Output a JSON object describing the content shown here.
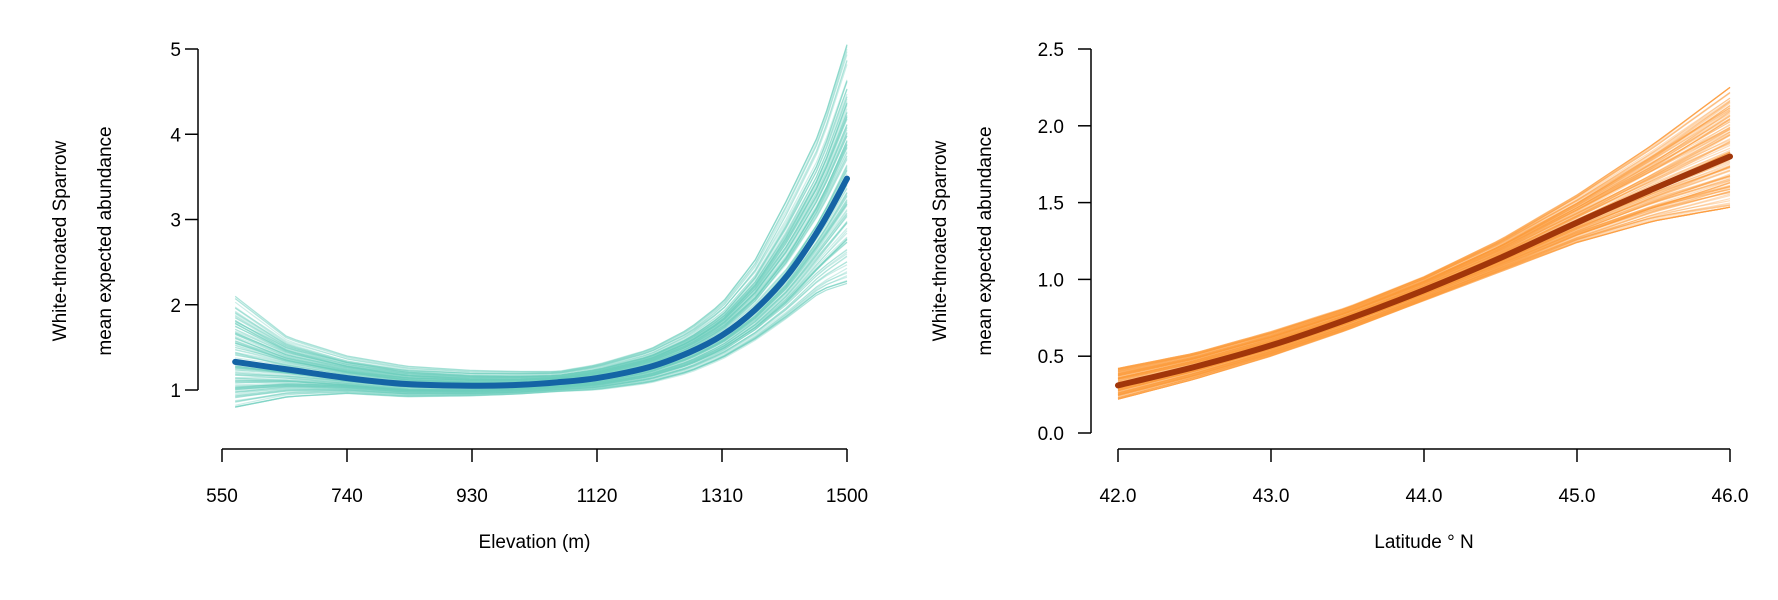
{
  "chart_data": [
    {
      "type": "line",
      "title": "",
      "xlabel": "Elevation (m)",
      "ylabel_lines": [
        "White-throated Sparrow",
        "mean expected abundance"
      ],
      "xlim": [
        550,
        1500
      ],
      "ylim": [
        0.3,
        5
      ],
      "xticks": [
        550,
        740,
        930,
        1120,
        1310,
        1500
      ],
      "xtick_labels": [
        "550",
        "740",
        "930",
        "1120",
        "1310",
        "1500"
      ],
      "yticks": [
        1,
        2,
        3,
        4,
        5
      ],
      "ytick_labels": [
        "1",
        "2",
        "3",
        "4",
        "5"
      ],
      "grid": false,
      "legend": "none",
      "band_color": "#6ccfbd",
      "mean_color": "#1464a5",
      "mean_series": {
        "x": [
          570,
          650,
          740,
          830,
          930,
          1000,
          1060,
          1120,
          1200,
          1260,
          1310,
          1360,
          1410,
          1460,
          1500
        ],
        "y": [
          1.33,
          1.24,
          1.14,
          1.07,
          1.05,
          1.06,
          1.09,
          1.14,
          1.27,
          1.44,
          1.64,
          1.94,
          2.35,
          2.92,
          3.48
        ]
      },
      "posterior_band": {
        "x": [
          570,
          650,
          740,
          830,
          930,
          1000,
          1060,
          1120,
          1200,
          1260,
          1310,
          1360,
          1410,
          1460,
          1500
        ],
        "lower": [
          0.8,
          0.92,
          0.96,
          0.92,
          0.93,
          0.95,
          0.98,
          1.0,
          1.08,
          1.2,
          1.36,
          1.58,
          1.85,
          2.15,
          2.25
        ],
        "upper": [
          2.1,
          1.62,
          1.4,
          1.28,
          1.23,
          1.22,
          1.22,
          1.3,
          1.48,
          1.72,
          2.02,
          2.52,
          3.25,
          4.05,
          5.05
        ]
      }
    },
    {
      "type": "line",
      "title": "",
      "xlabel": "Latitude ° N",
      "ylabel_lines": [
        "White-throated Sparrow",
        "mean expected abundance"
      ],
      "xlim": [
        42.0,
        46.0
      ],
      "ylim": [
        0.0,
        2.5
      ],
      "xticks": [
        42,
        43,
        44,
        45,
        46
      ],
      "xtick_labels": [
        "42.0",
        "43.0",
        "44.0",
        "45.0",
        "46.0"
      ],
      "yticks": [
        0,
        0.5,
        1,
        1.5,
        2,
        2.5
      ],
      "ytick_labels": [
        "0.0",
        "0.5",
        "1.0",
        "1.5",
        "2.0",
        "2.5"
      ],
      "grid": false,
      "legend": "none",
      "band_color": "#fb9a3a",
      "mean_color": "#a1360a",
      "mean_series": {
        "x": [
          42.0,
          42.5,
          43.0,
          43.5,
          44.0,
          44.5,
          45.0,
          45.5,
          46.0
        ],
        "y": [
          0.31,
          0.43,
          0.57,
          0.74,
          0.93,
          1.14,
          1.37,
          1.59,
          1.8
        ]
      },
      "posterior_band": {
        "x": [
          42.0,
          42.5,
          43.0,
          43.5,
          44.0,
          44.5,
          45.0,
          45.5,
          46.0
        ],
        "lower": [
          0.22,
          0.35,
          0.5,
          0.67,
          0.86,
          1.05,
          1.24,
          1.38,
          1.47
        ],
        "upper": [
          0.42,
          0.52,
          0.66,
          0.82,
          1.02,
          1.26,
          1.55,
          1.88,
          2.25
        ]
      }
    }
  ]
}
